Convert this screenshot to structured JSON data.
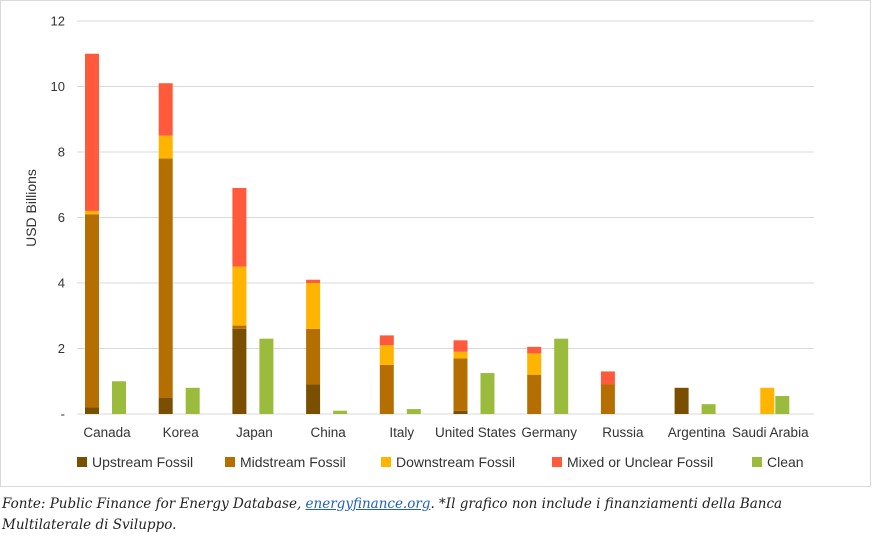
{
  "chart_data": {
    "type": "bar",
    "stacked": true,
    "ylabel": "USD Billions",
    "ylim": [
      0,
      12
    ],
    "yticks": [
      0,
      2,
      4,
      6,
      8,
      10,
      12
    ],
    "ytick_labels": [
      "-",
      "2",
      "4",
      "6",
      "8",
      "10",
      "12"
    ],
    "grid": true,
    "legend_position": "bottom",
    "categories": [
      "Canada",
      "Korea",
      "Japan",
      "China",
      "Italy",
      "United States",
      "Germany",
      "Russia",
      "Argentina",
      "Saudi Arabia"
    ],
    "stacked_series": [
      {
        "name": "Upstream Fossil",
        "color": "#7a4f00",
        "values": [
          0.2,
          0.5,
          2.6,
          0.9,
          0,
          0.1,
          0,
          0,
          0.8,
          0
        ]
      },
      {
        "name": "Midstream Fossil",
        "color": "#b46f00",
        "values": [
          5.9,
          7.3,
          0.1,
          1.7,
          1.5,
          1.6,
          1.2,
          0.9,
          0,
          0
        ]
      },
      {
        "name": "Downstream Fossil",
        "color": "#ffb400",
        "values": [
          0.1,
          0.7,
          1.8,
          1.4,
          0.6,
          0.2,
          0.65,
          0,
          0,
          0
        ]
      },
      {
        "name": "Mixed or Unclear Fossil",
        "color": "#ff5a3c",
        "values": [
          4.8,
          1.6,
          2.4,
          0.1,
          0.3,
          0.35,
          0.2,
          0.4,
          0,
          0
        ]
      }
    ],
    "clean_series": {
      "name": "Clean",
      "color": "#9bbb3c",
      "values": [
        1.0,
        0.8,
        2.3,
        0.1,
        0.15,
        1.25,
        2.3,
        0,
        0.3,
        0.55
      ]
    },
    "saudi_downstream_side_bar": 0.8
  },
  "caption": {
    "prefix": "Fonte: Public Finance for Energy Database, ",
    "link_text": "energyfinance.org",
    "suffix": ". *Il grafico non include i finanziamenti della Banca Multilaterale di Sviluppo."
  }
}
